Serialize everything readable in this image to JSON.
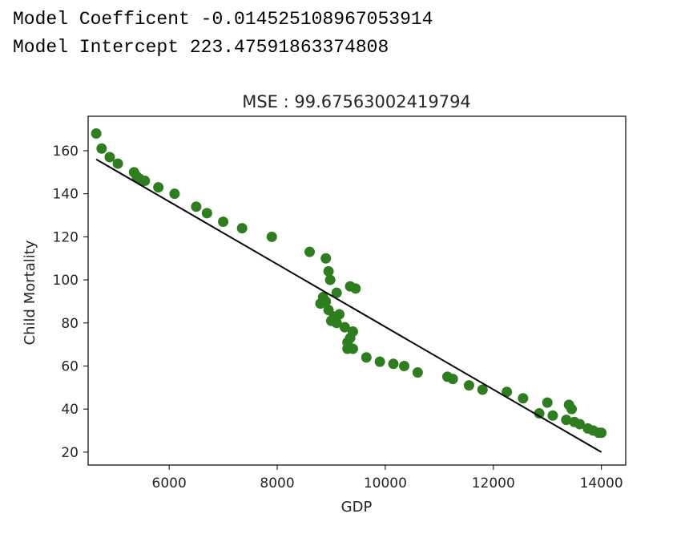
{
  "output": {
    "coefficient_line": "Model Coefficent -0.014525108967053914",
    "intercept_line": "Model Intercept 223.47591863374808"
  },
  "chart_data": {
    "type": "scatter",
    "title": "MSE : 99.67563002419794",
    "xlabel": "GDP",
    "ylabel": "Child Mortality",
    "xlim": [
      4500,
      14450
    ],
    "ylim": [
      14,
      176
    ],
    "xticks": [
      6000,
      8000,
      10000,
      12000,
      14000
    ],
    "yticks": [
      20,
      40,
      60,
      80,
      100,
      120,
      140,
      160
    ],
    "grid": false,
    "points_color": "#2e7d1f",
    "line_color": "#000000",
    "points": [
      [
        4650,
        168
      ],
      [
        4750,
        161
      ],
      [
        4900,
        157
      ],
      [
        5050,
        154
      ],
      [
        5350,
        150
      ],
      [
        5400,
        148
      ],
      [
        5450,
        147
      ],
      [
        5550,
        146
      ],
      [
        5800,
        143
      ],
      [
        6100,
        140
      ],
      [
        6500,
        134
      ],
      [
        6700,
        131
      ],
      [
        7000,
        127
      ],
      [
        7350,
        124
      ],
      [
        7900,
        120
      ],
      [
        8600,
        113
      ],
      [
        8900,
        110
      ],
      [
        8950,
        104
      ],
      [
        8980,
        100
      ],
      [
        9100,
        94
      ],
      [
        8850,
        92
      ],
      [
        8900,
        90
      ],
      [
        8800,
        89
      ],
      [
        8950,
        86
      ],
      [
        9050,
        83
      ],
      [
        9150,
        84
      ],
      [
        9000,
        81
      ],
      [
        9100,
        80
      ],
      [
        9250,
        78
      ],
      [
        9400,
        76
      ],
      [
        9350,
        73
      ],
      [
        9300,
        71
      ],
      [
        9300,
        68
      ],
      [
        9400,
        68
      ],
      [
        9350,
        97
      ],
      [
        9450,
        96
      ],
      [
        9650,
        64
      ],
      [
        9900,
        62
      ],
      [
        10150,
        61
      ],
      [
        10350,
        60
      ],
      [
        10600,
        57
      ],
      [
        11150,
        55
      ],
      [
        11250,
        54
      ],
      [
        11550,
        51
      ],
      [
        11800,
        49
      ],
      [
        12250,
        48
      ],
      [
        12550,
        45
      ],
      [
        13000,
        43
      ],
      [
        12850,
        38
      ],
      [
        13100,
        37
      ],
      [
        13350,
        35
      ],
      [
        13400,
        42
      ],
      [
        13450,
        40
      ],
      [
        13500,
        34
      ],
      [
        13600,
        33
      ],
      [
        13750,
        31
      ],
      [
        13850,
        30
      ],
      [
        13950,
        29
      ],
      [
        14000,
        29
      ]
    ],
    "regression_line": {
      "x": [
        4650,
        14000
      ],
      "y": [
        156,
        20
      ]
    }
  }
}
